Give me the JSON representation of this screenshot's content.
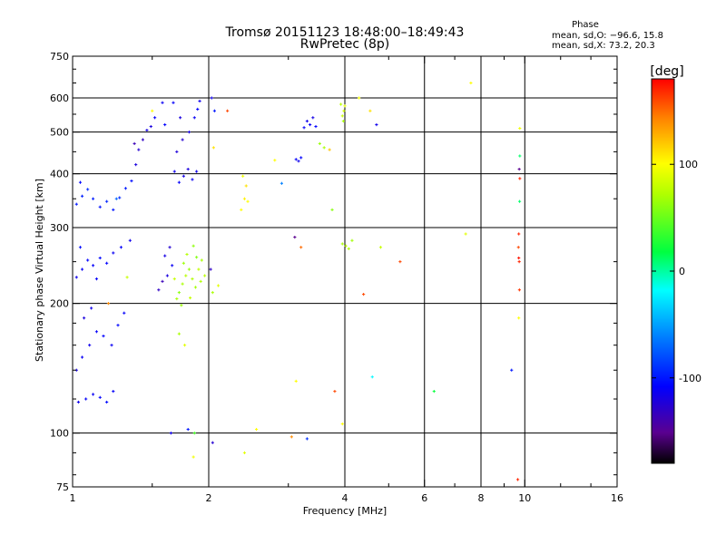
{
  "header": {
    "title": "Tromsø 20151123 18:48:00–18:49:43",
    "subtitle": "RwPretec (8p)"
  },
  "phase_stats": {
    "heading": "Phase",
    "line_o": "mean, sd,O: −96.6, 15.8",
    "line_x": "mean, sd,X:  73.2, 20.3"
  },
  "colorbar": {
    "unit": "[deg]",
    "ticks": [
      {
        "value": 100,
        "label": "100"
      },
      {
        "value": 0,
        "label": "0"
      },
      {
        "value": -100,
        "label": "-100"
      }
    ],
    "range": [
      -180,
      180
    ]
  },
  "chart_data": {
    "type": "scatter",
    "xlabel": "Frequency [MHz]",
    "ylabel": "Stationary phase Virtual Height [km]",
    "x_scale": "log",
    "y_scale": "log",
    "xlim": [
      1,
      16
    ],
    "ylim": [
      75,
      750
    ],
    "x_ticks": [
      {
        "value": 1,
        "label": "1"
      },
      {
        "value": 2,
        "label": "2"
      },
      {
        "value": 4,
        "label": "4"
      },
      {
        "value": 6,
        "label": "6"
      },
      {
        "value": 8,
        "label": "8"
      },
      {
        "value": 10,
        "label": "10"
      },
      {
        "value": 16,
        "label": "16"
      }
    ],
    "x_minor_ticks": [
      1.5,
      3,
      5,
      7,
      9,
      12,
      14
    ],
    "y_ticks": [
      {
        "value": 75,
        "label": "75"
      },
      {
        "value": 100,
        "label": "100"
      },
      {
        "value": 200,
        "label": "200"
      },
      {
        "value": 300,
        "label": "300"
      },
      {
        "value": 400,
        "label": "400"
      },
      {
        "value": 500,
        "label": "500"
      },
      {
        "value": 600,
        "label": "600"
      },
      {
        "value": 750,
        "label": "750"
      }
    ],
    "y_minor_ticks": [
      80,
      90,
      120,
      140,
      160,
      180,
      250,
      350,
      450,
      550,
      650,
      700
    ],
    "x_grid": [
      2,
      4,
      6,
      8,
      10
    ],
    "y_grid": [
      100,
      200,
      300,
      400,
      500,
      600
    ],
    "series": [
      {
        "points": [
          {
            "x": 1.03,
            "y": 118,
            "phase": -115
          },
          {
            "x": 1.07,
            "y": 120,
            "phase": -110
          },
          {
            "x": 1.11,
            "y": 123,
            "phase": -112
          },
          {
            "x": 1.15,
            "y": 121,
            "phase": -108
          },
          {
            "x": 1.19,
            "y": 118,
            "phase": -105
          },
          {
            "x": 1.23,
            "y": 125,
            "phase": -110
          },
          {
            "x": 1.02,
            "y": 140,
            "phase": -118
          },
          {
            "x": 1.05,
            "y": 150,
            "phase": -112
          },
          {
            "x": 1.09,
            "y": 160,
            "phase": -115
          },
          {
            "x": 1.13,
            "y": 172,
            "phase": -110
          },
          {
            "x": 1.17,
            "y": 168,
            "phase": -108
          },
          {
            "x": 1.22,
            "y": 160,
            "phase": -112
          },
          {
            "x": 1.26,
            "y": 178,
            "phase": -106
          },
          {
            "x": 1.3,
            "y": 190,
            "phase": -110
          },
          {
            "x": 1.06,
            "y": 185,
            "phase": -120
          },
          {
            "x": 1.1,
            "y": 195,
            "phase": -115
          },
          {
            "x": 1.02,
            "y": 230,
            "phase": -115
          },
          {
            "x": 1.05,
            "y": 240,
            "phase": -112
          },
          {
            "x": 1.08,
            "y": 252,
            "phase": -108
          },
          {
            "x": 1.11,
            "y": 245,
            "phase": -110
          },
          {
            "x": 1.15,
            "y": 255,
            "phase": -105
          },
          {
            "x": 1.19,
            "y": 248,
            "phase": -108
          },
          {
            "x": 1.23,
            "y": 262,
            "phase": -112
          },
          {
            "x": 1.28,
            "y": 270,
            "phase": -110
          },
          {
            "x": 1.34,
            "y": 280,
            "phase": -115
          },
          {
            "x": 1.04,
            "y": 270,
            "phase": -104
          },
          {
            "x": 1.13,
            "y": 228,
            "phase": -110
          },
          {
            "x": 1.02,
            "y": 340,
            "phase": -100
          },
          {
            "x": 1.05,
            "y": 355,
            "phase": -96
          },
          {
            "x": 1.08,
            "y": 368,
            "phase": -92
          },
          {
            "x": 1.11,
            "y": 350,
            "phase": -98
          },
          {
            "x": 1.15,
            "y": 335,
            "phase": -102
          },
          {
            "x": 1.19,
            "y": 345,
            "phase": -95
          },
          {
            "x": 1.23,
            "y": 330,
            "phase": -100
          },
          {
            "x": 1.27,
            "y": 352,
            "phase": -94
          },
          {
            "x": 1.31,
            "y": 370,
            "phase": -98
          },
          {
            "x": 1.35,
            "y": 385,
            "phase": -104
          },
          {
            "x": 1.04,
            "y": 382,
            "phase": -106
          },
          {
            "x": 1.38,
            "y": 420,
            "phase": -120
          },
          {
            "x": 1.4,
            "y": 455,
            "phase": -125
          },
          {
            "x": 1.43,
            "y": 480,
            "phase": -130
          },
          {
            "x": 1.46,
            "y": 505,
            "phase": -118
          },
          {
            "x": 1.49,
            "y": 515,
            "phase": -120
          },
          {
            "x": 1.37,
            "y": 470,
            "phase": -135
          },
          {
            "x": 1.52,
            "y": 540,
            "phase": -110
          },
          {
            "x": 1.58,
            "y": 585,
            "phase": -112
          },
          {
            "x": 1.6,
            "y": 520,
            "phase": -108
          },
          {
            "x": 1.68,
            "y": 405,
            "phase": -115
          },
          {
            "x": 1.72,
            "y": 382,
            "phase": -110
          },
          {
            "x": 1.76,
            "y": 395,
            "phase": -118
          },
          {
            "x": 1.8,
            "y": 410,
            "phase": -120
          },
          {
            "x": 1.84,
            "y": 388,
            "phase": -112
          },
          {
            "x": 1.88,
            "y": 405,
            "phase": -115
          },
          {
            "x": 1.7,
            "y": 450,
            "phase": -122
          },
          {
            "x": 1.75,
            "y": 480,
            "phase": -125
          },
          {
            "x": 1.81,
            "y": 500,
            "phase": -118
          },
          {
            "x": 1.86,
            "y": 540,
            "phase": -112
          },
          {
            "x": 1.89,
            "y": 565,
            "phase": -108
          },
          {
            "x": 1.91,
            "y": 590,
            "phase": -115
          },
          {
            "x": 1.73,
            "y": 540,
            "phase": -120
          },
          {
            "x": 1.67,
            "y": 585,
            "phase": -110
          },
          {
            "x": 1.55,
            "y": 215,
            "phase": -130
          },
          {
            "x": 1.58,
            "y": 225,
            "phase": -135
          },
          {
            "x": 1.62,
            "y": 232,
            "phase": -120
          },
          {
            "x": 1.66,
            "y": 245,
            "phase": -112
          },
          {
            "x": 1.6,
            "y": 258,
            "phase": -118
          },
          {
            "x": 1.64,
            "y": 270,
            "phase": -125
          },
          {
            "x": 1.72,
            "y": 212,
            "phase": 60
          },
          {
            "x": 1.75,
            "y": 222,
            "phase": 70
          },
          {
            "x": 1.78,
            "y": 232,
            "phase": 75
          },
          {
            "x": 1.81,
            "y": 240,
            "phase": 65
          },
          {
            "x": 1.84,
            "y": 228,
            "phase": 72
          },
          {
            "x": 1.87,
            "y": 218,
            "phase": 68
          },
          {
            "x": 1.9,
            "y": 240,
            "phase": 78
          },
          {
            "x": 1.93,
            "y": 252,
            "phase": 70
          },
          {
            "x": 1.79,
            "y": 260,
            "phase": 74
          },
          {
            "x": 1.85,
            "y": 272,
            "phase": 62
          },
          {
            "x": 1.74,
            "y": 198,
            "phase": 66
          },
          {
            "x": 1.7,
            "y": 205,
            "phase": 70
          },
          {
            "x": 1.82,
            "y": 206,
            "phase": 80
          },
          {
            "x": 1.92,
            "y": 225,
            "phase": 72
          },
          {
            "x": 1.88,
            "y": 256,
            "phase": 58
          },
          {
            "x": 1.76,
            "y": 248,
            "phase": 66
          },
          {
            "x": 1.96,
            "y": 232,
            "phase": 76
          },
          {
            "x": 1.68,
            "y": 228,
            "phase": 80
          },
          {
            "x": 1.72,
            "y": 170,
            "phase": 70
          },
          {
            "x": 1.77,
            "y": 160,
            "phase": 90
          },
          {
            "x": 2.03,
            "y": 600,
            "phase": -115
          },
          {
            "x": 2.06,
            "y": 560,
            "phase": -100
          },
          {
            "x": 2.05,
            "y": 460,
            "phase": 110
          },
          {
            "x": 2.02,
            "y": 240,
            "phase": -130
          },
          {
            "x": 2.04,
            "y": 212,
            "phase": 70
          },
          {
            "x": 2.36,
            "y": 330,
            "phase": 100
          },
          {
            "x": 2.4,
            "y": 350,
            "phase": 105
          },
          {
            "x": 2.42,
            "y": 375,
            "phase": 110
          },
          {
            "x": 2.38,
            "y": 395,
            "phase": 95
          },
          {
            "x": 2.44,
            "y": 345,
            "phase": 100
          },
          {
            "x": 3.12,
            "y": 432,
            "phase": -110
          },
          {
            "x": 3.16,
            "y": 428,
            "phase": -115
          },
          {
            "x": 3.2,
            "y": 436,
            "phase": -108
          },
          {
            "x": 3.25,
            "y": 512,
            "phase": -110
          },
          {
            "x": 3.3,
            "y": 530,
            "phase": -115
          },
          {
            "x": 3.35,
            "y": 520,
            "phase": -112
          },
          {
            "x": 3.4,
            "y": 540,
            "phase": -118
          },
          {
            "x": 3.45,
            "y": 515,
            "phase": -108
          },
          {
            "x": 3.95,
            "y": 545,
            "phase": 80
          },
          {
            "x": 3.98,
            "y": 560,
            "phase": 85
          },
          {
            "x": 4.0,
            "y": 575,
            "phase": 90
          },
          {
            "x": 3.92,
            "y": 580,
            "phase": 75
          },
          {
            "x": 3.97,
            "y": 530,
            "phase": 70
          },
          {
            "x": 3.52,
            "y": 470,
            "phase": 65
          },
          {
            "x": 3.6,
            "y": 460,
            "phase": 70
          },
          {
            "x": 3.95,
            "y": 275,
            "phase": 70
          },
          {
            "x": 4.02,
            "y": 272,
            "phase": 75
          },
          {
            "x": 4.08,
            "y": 268,
            "phase": 72
          },
          {
            "x": 4.15,
            "y": 280,
            "phase": 68
          },
          {
            "x": 4.3,
            "y": 600,
            "phase": 95
          },
          {
            "x": 4.55,
            "y": 560,
            "phase": 110
          },
          {
            "x": 4.7,
            "y": 520,
            "phase": -115
          },
          {
            "x": 4.4,
            "y": 210,
            "phase": 160
          },
          {
            "x": 4.6,
            "y": 135,
            "phase": -20
          },
          {
            "x": 4.8,
            "y": 270,
            "phase": 80
          },
          {
            "x": 5.3,
            "y": 250,
            "phase": 160
          },
          {
            "x": 6.3,
            "y": 125,
            "phase": 20
          },
          {
            "x": 7.4,
            "y": 290,
            "phase": 90
          },
          {
            "x": 7.6,
            "y": 650,
            "phase": 100
          },
          {
            "x": 9.75,
            "y": 510,
            "phase": 95
          },
          {
            "x": 9.75,
            "y": 440,
            "phase": 10
          },
          {
            "x": 9.72,
            "y": 410,
            "phase": -150
          },
          {
            "x": 9.75,
            "y": 390,
            "phase": 170
          },
          {
            "x": 9.74,
            "y": 345,
            "phase": 10
          },
          {
            "x": 9.7,
            "y": 290,
            "phase": 170
          },
          {
            "x": 9.68,
            "y": 270,
            "phase": 160
          },
          {
            "x": 9.7,
            "y": 255,
            "phase": 175
          },
          {
            "x": 9.72,
            "y": 250,
            "phase": 170
          },
          {
            "x": 9.73,
            "y": 215,
            "phase": 165
          },
          {
            "x": 9.7,
            "y": 185,
            "phase": 100
          },
          {
            "x": 9.35,
            "y": 140,
            "phase": -100
          },
          {
            "x": 9.65,
            "y": 78,
            "phase": 170
          },
          {
            "x": 1.65,
            "y": 100,
            "phase": -115
          },
          {
            "x": 1.8,
            "y": 102,
            "phase": -100
          },
          {
            "x": 1.86,
            "y": 100,
            "phase": 40
          },
          {
            "x": 2.04,
            "y": 95,
            "phase": -125
          },
          {
            "x": 2.4,
            "y": 90,
            "phase": 90
          },
          {
            "x": 2.55,
            "y": 102,
            "phase": 100
          },
          {
            "x": 3.05,
            "y": 98,
            "phase": 140
          },
          {
            "x": 3.3,
            "y": 97,
            "phase": -90
          },
          {
            "x": 3.12,
            "y": 132,
            "phase": 100
          },
          {
            "x": 3.95,
            "y": 105,
            "phase": 100
          },
          {
            "x": 3.8,
            "y": 125,
            "phase": 160
          },
          {
            "x": 1.85,
            "y": 88,
            "phase": 95
          },
          {
            "x": 1.2,
            "y": 200,
            "phase": 140
          },
          {
            "x": 1.32,
            "y": 230,
            "phase": 80
          },
          {
            "x": 1.5,
            "y": 560,
            "phase": 100
          },
          {
            "x": 2.1,
            "y": 220,
            "phase": 90
          },
          {
            "x": 2.2,
            "y": 560,
            "phase": 160
          },
          {
            "x": 2.8,
            "y": 430,
            "phase": 100
          },
          {
            "x": 2.9,
            "y": 380,
            "phase": -60
          },
          {
            "x": 3.1,
            "y": 285,
            "phase": -150
          },
          {
            "x": 3.2,
            "y": 270,
            "phase": 150
          },
          {
            "x": 3.75,
            "y": 330,
            "phase": 60
          },
          {
            "x": 3.7,
            "y": 455,
            "phase": 120
          },
          {
            "x": 1.25,
            "y": 350,
            "phase": -70
          }
        ]
      }
    ]
  }
}
